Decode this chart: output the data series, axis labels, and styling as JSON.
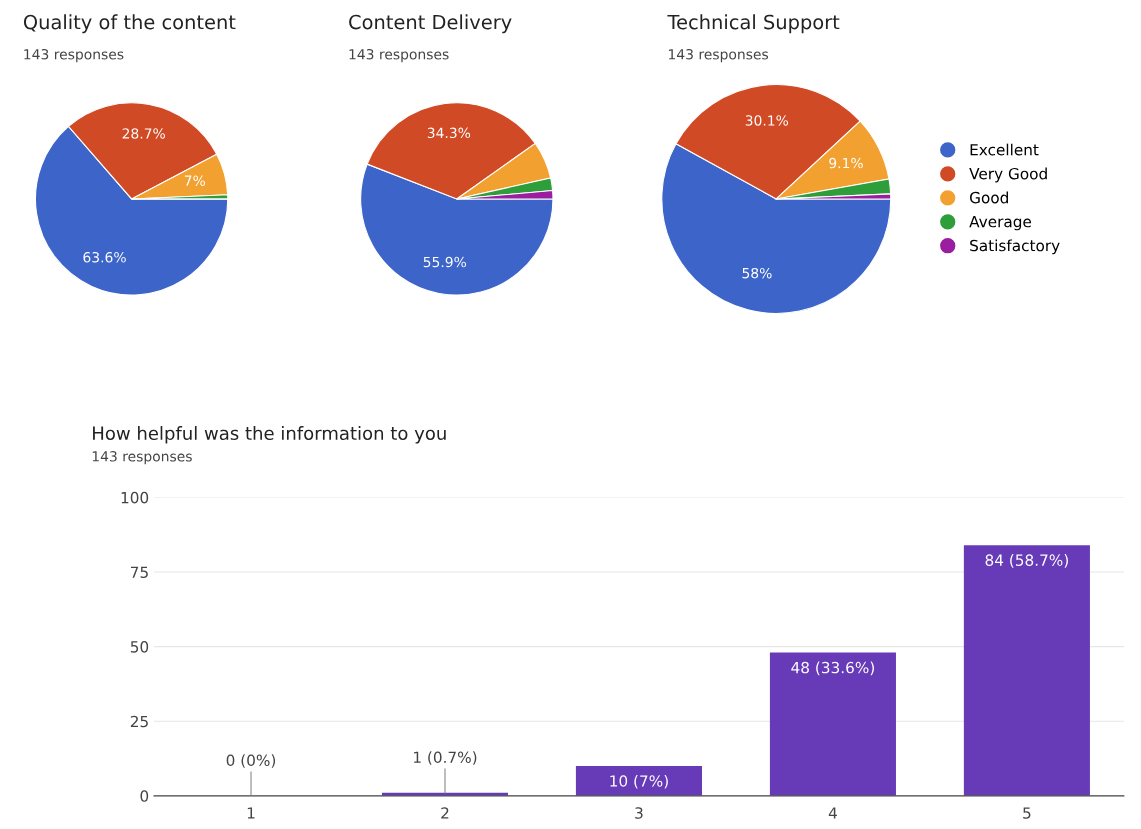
{
  "chart_data": [
    {
      "type": "pie",
      "title": "Quality of the content",
      "subtitle": "143 responses",
      "categories": [
        null,
        null,
        null,
        null,
        null
      ],
      "values": [
        63.6,
        28.7,
        7,
        0.7,
        0
      ],
      "colors": [
        "#3d64c8",
        "#d14a26",
        "#f2a02f",
        "#2e9e3a",
        "#9a1ea0"
      ],
      "value_labels": [
        "63.6%",
        "28.7%",
        "7%",
        null,
        null
      ],
      "legend": false
    },
    {
      "type": "pie",
      "title": "Content Delivery",
      "subtitle": "143 responses",
      "categories": [
        null,
        null,
        null,
        null,
        null
      ],
      "values": [
        55.9,
        34.3,
        6.3,
        2.1,
        1.4
      ],
      "colors": [
        "#3d64c8",
        "#d14a26",
        "#f2a02f",
        "#2e9e3a",
        "#9a1ea0"
      ],
      "value_labels": [
        "55.9%",
        "34.3%",
        null,
        null,
        null
      ],
      "legend": false
    },
    {
      "type": "pie",
      "title": "Technical Support",
      "subtitle": "143 responses",
      "categories": [
        "Excellent",
        "Very Good",
        "Good",
        "Average",
        "Satisfactory"
      ],
      "values": [
        58,
        30.1,
        9.1,
        2.1,
        0.7
      ],
      "colors": [
        "#3d64c8",
        "#d14a26",
        "#f2a02f",
        "#2e9e3a",
        "#9a1ea0"
      ],
      "value_labels": [
        "58%",
        "30.1%",
        "9.1%",
        null,
        null
      ],
      "legend": "right"
    },
    {
      "type": "bar",
      "title": "How helpful was the information to you",
      "subtitle": "143 responses",
      "categories": [
        "1",
        "2",
        "3",
        "4",
        "5"
      ],
      "values": [
        0,
        1,
        10,
        48,
        84
      ],
      "color": "#673ab7",
      "value_labels": [
        "0 (0%)",
        "1 (0.7%)",
        "10 (7%)",
        "48 (33.6%)",
        "84 (58.7%)"
      ],
      "ylim": [
        0,
        100
      ],
      "yticks": [
        0,
        25,
        50,
        75,
        100
      ],
      "grid": "y",
      "legend": false
    }
  ]
}
